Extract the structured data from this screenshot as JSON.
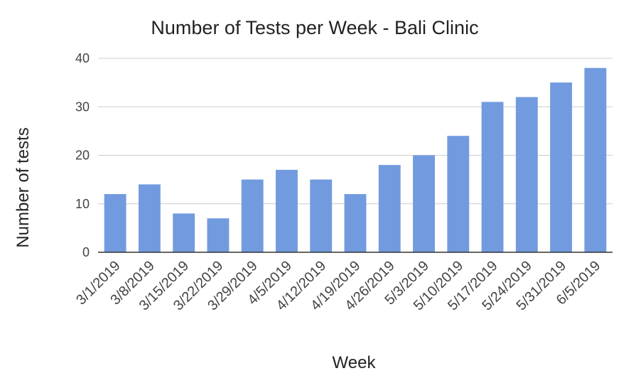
{
  "chart_data": {
    "type": "bar",
    "title": "Number of Tests per Week - Bali Clinic",
    "xlabel": "Week",
    "ylabel": "Number of tests",
    "categories": [
      "3/1/2019",
      "3/8/2019",
      "3/15/2019",
      "3/22/2019",
      "3/29/2019",
      "4/5/2019",
      "4/12/2019",
      "4/19/2019",
      "4/26/2019",
      "5/3/2019",
      "5/10/2019",
      "5/17/2019",
      "5/24/2019",
      "5/31/2019",
      "6/5/2019"
    ],
    "values": [
      12,
      14,
      8,
      7,
      15,
      17,
      15,
      12,
      18,
      20,
      24,
      31,
      32,
      35,
      38
    ],
    "ylim": [
      0,
      40
    ],
    "yticks": [
      0,
      10,
      20,
      30,
      40
    ],
    "grid": true,
    "legend": "none",
    "bar_color": "#729bdf",
    "grid_color": "#cccccc",
    "axis_color": "#333333"
  }
}
